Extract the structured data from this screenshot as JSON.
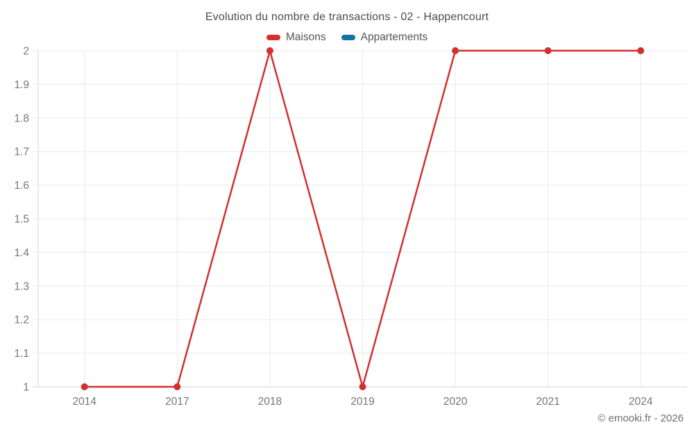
{
  "copyright": "© emooki.fr - 2026",
  "chart_data": {
    "type": "line",
    "title": "Evolution du nombre de transactions - 02 - Happencourt",
    "categories": [
      "2014",
      "2017",
      "2018",
      "2019",
      "2020",
      "2021",
      "2024"
    ],
    "series": [
      {
        "name": "Maisons",
        "color": "#d32f2f",
        "values": [
          1,
          1,
          2,
          1,
          2,
          2,
          2
        ]
      },
      {
        "name": "Appartements",
        "color": "#1770a0",
        "values": []
      }
    ],
    "xlabel": "",
    "ylabel": "",
    "ylim": [
      1,
      2
    ],
    "ytick_step": 0.1,
    "ytick_labels": [
      "1",
      "1.1",
      "1.2",
      "1.3",
      "1.4",
      "1.5",
      "1.6",
      "1.7",
      "1.8",
      "1.9",
      "2"
    ],
    "grid": "horizontal-and-vertical",
    "legend_position": "top",
    "colors": {
      "grid_line": "#e9e9e9",
      "axis_line": "#d2d2d2",
      "tick_label": "#757575",
      "title_text": "#4c4c4c",
      "legend_text": "#555555",
      "copyright_text": "#6e6e6e",
      "background": "#ffffff"
    }
  }
}
